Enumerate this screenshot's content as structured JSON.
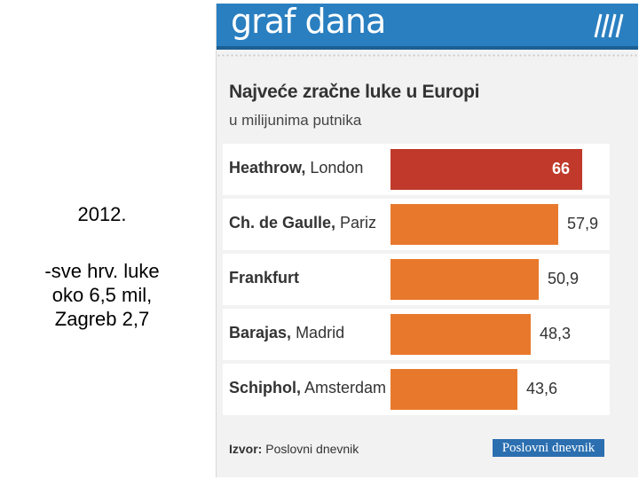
{
  "notes": {
    "year": "2012.",
    "lines": [
      "-sve hrv. luke",
      "oko 6,5 mil,",
      "Zagreb 2,7"
    ]
  },
  "banner": {
    "title": "graf dana",
    "color": "#2a7fc0"
  },
  "chart_data": {
    "type": "bar",
    "orientation": "horizontal",
    "title": "Najveće zračne luke u Europi",
    "subtitle": "u milijunima putnika",
    "categories": [
      "Heathrow, London",
      "Ch. de Gaulle, Pariz",
      "Frankfurt",
      "Barajas, Madrid",
      "Schiphol, Amsterdam"
    ],
    "category_names": [
      "Heathrow",
      "Ch. de Gaulle",
      "Frankfurt",
      "Barajas",
      "Schiphol"
    ],
    "category_cities": [
      "London",
      "Pariz",
      "",
      "Madrid",
      "Amsterdam"
    ],
    "values": [
      66,
      57.9,
      50.9,
      48.3,
      43.6
    ],
    "value_labels": [
      "66",
      "57,9",
      "50,9",
      "48,3",
      "43,6"
    ],
    "highlight_color": "#c0392b",
    "bar_color": "#e8792c",
    "xlim": [
      0,
      66
    ],
    "grid": false,
    "legend": "none"
  },
  "source": {
    "label": "Izvor:",
    "text": "Poslovni dnevnik"
  },
  "logo": {
    "text": "Poslovni dnevnik"
  }
}
